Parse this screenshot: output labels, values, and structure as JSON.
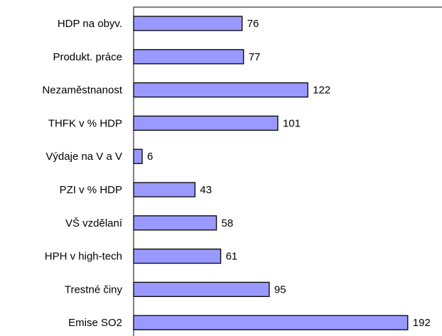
{
  "chart_data": {
    "type": "barh",
    "categories": [
      "HDP na obyv.",
      "Produkt. práce",
      "Nezaměstnanost",
      "THFK v % HDP",
      "Výdaje na V a V",
      "PZI v % HDP",
      "VŠ vzdělaní",
      "HPH v high-tech",
      "Trestné činy",
      "Emise SO2"
    ],
    "values": [
      76,
      77,
      122,
      101,
      6,
      43,
      58,
      61,
      95,
      192
    ],
    "color": "#9999ff",
    "xlim": [
      0,
      215
    ]
  }
}
